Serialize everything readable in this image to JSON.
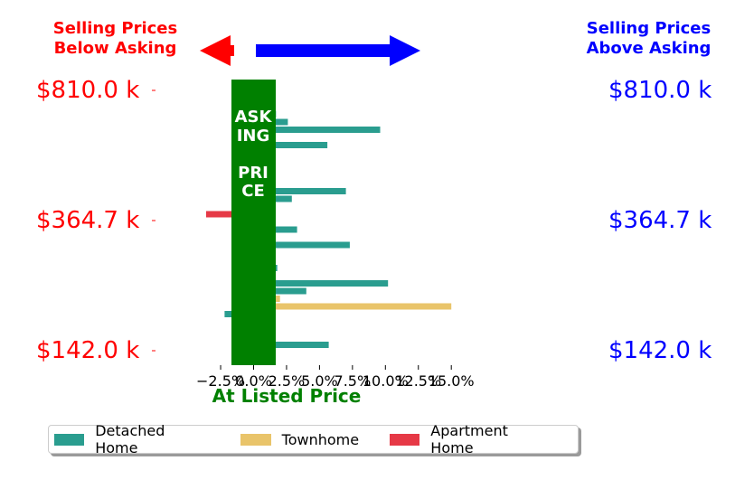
{
  "header": {
    "left_line1": "Selling Prices",
    "left_line2": "Below Asking",
    "right_line1": "Selling Prices",
    "right_line2": "Above Asking",
    "left_color": "#ff0000",
    "right_color": "#0000ff"
  },
  "colors": {
    "asking_band": "#008000",
    "detached": "#2a9d8f",
    "townhome": "#e9c46a",
    "apartment": "#e63946"
  },
  "chart_data": {
    "type": "bar",
    "orientation": "horizontal",
    "band_label": "ASKING\n\nPRICE",
    "xlabel": "At Listed Price",
    "x_tick_labels": [
      "−2.5%",
      "0.0%",
      "2.5%",
      "5.0%",
      "7.5%",
      "10.0%",
      "12.5%",
      "15.0%"
    ],
    "x_ticks": [
      -2.5,
      0,
      2.5,
      5,
      7.5,
      10,
      12.5,
      15
    ],
    "xlim": [
      -4,
      16
    ],
    "y_price_labels": [
      "$810.0 k",
      "$364.7 k",
      "$142.0 k"
    ],
    "series": [
      {
        "name": "Detached Home",
        "color": "#2a9d8f"
      },
      {
        "name": "Townhome",
        "color": "#e9c46a"
      },
      {
        "name": "Apartment Home",
        "color": "#e63946"
      }
    ],
    "bars": [
      {
        "series": 0,
        "value": 1.2
      },
      {
        "series": 0,
        "value": 1.2
      },
      {
        "series": 0,
        "value": 1.2
      },
      {
        "series": 0,
        "value": 1.7
      },
      {
        "series": 0,
        "value": 2.6
      },
      {
        "series": 0,
        "value": 9.6
      },
      {
        "series": 0,
        "value": 1.2
      },
      {
        "series": 0,
        "value": 5.6
      },
      {
        "series": 0,
        "value": 1.5
      },
      {
        "series": 0,
        "value": 1.2
      },
      {
        "series": 1,
        "value": 1.2
      },
      {
        "series": 0,
        "value": 1.2
      },
      {
        "series": 0,
        "value": 1.2
      },
      {
        "series": 0,
        "value": 7.0
      },
      {
        "series": 0,
        "value": 2.9
      },
      {
        "series": 0,
        "value": -1.5
      },
      {
        "series": 2,
        "value": -3.6
      },
      {
        "series": 0,
        "value": 1.2
      },
      {
        "series": 0,
        "value": 3.3
      },
      {
        "series": 0,
        "value": 1.2
      },
      {
        "series": 0,
        "value": 7.3
      },
      {
        "series": 0,
        "value": 1.2
      },
      {
        "series": 0,
        "value": 1.2
      },
      {
        "series": 0,
        "value": 1.8
      },
      {
        "series": 0,
        "value": 1.2
      },
      {
        "series": 0,
        "value": 10.2
      },
      {
        "series": 0,
        "value": 4.0
      },
      {
        "series": 1,
        "value": 2.0
      },
      {
        "series": 1,
        "value": 15.0
      },
      {
        "series": 0,
        "value": -2.2
      },
      {
        "series": 1,
        "value": 1.2
      },
      {
        "series": 0,
        "value": 1.2
      },
      {
        "series": 1,
        "value": 1.2
      },
      {
        "series": 0,
        "value": 5.7
      },
      {
        "series": 2,
        "value": 1.4
      }
    ]
  }
}
